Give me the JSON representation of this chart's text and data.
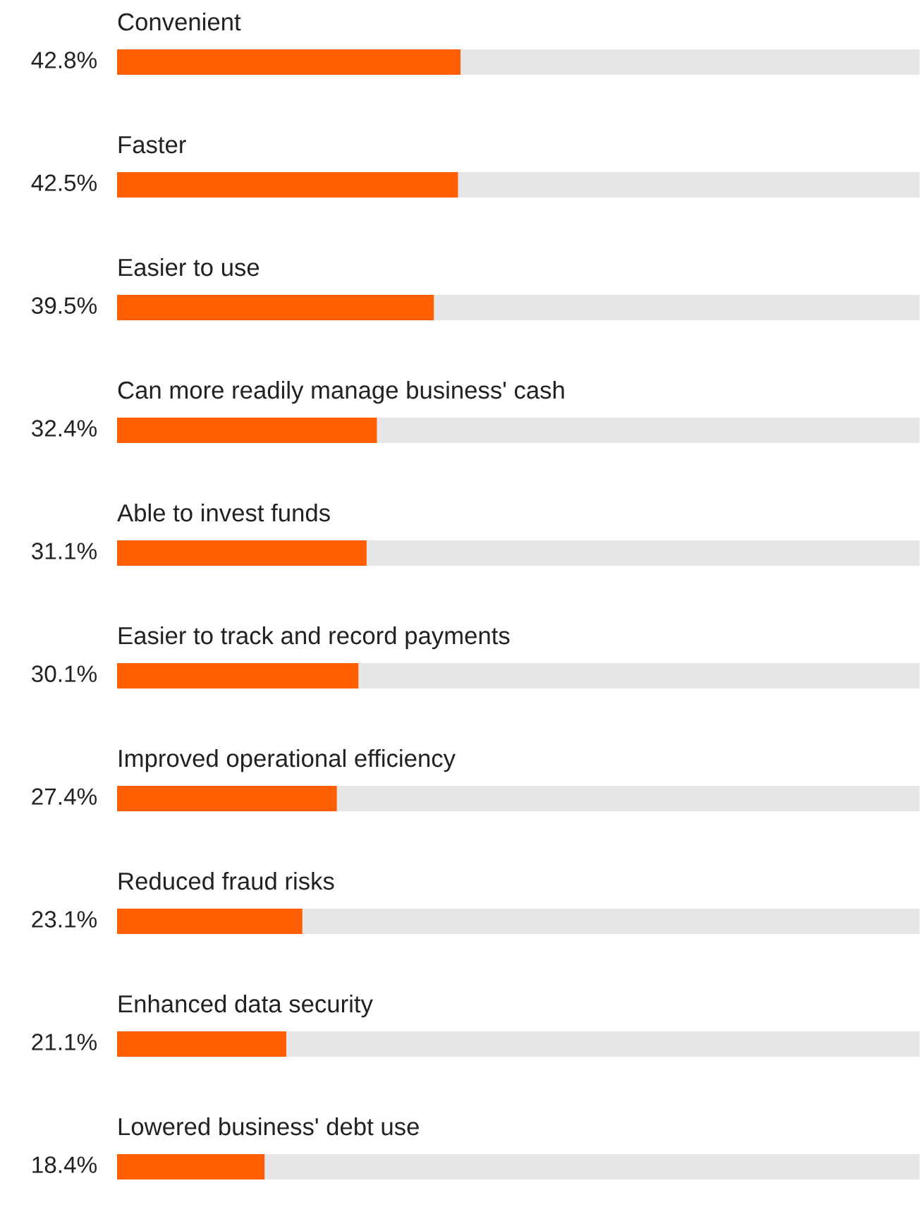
{
  "chart_data": {
    "type": "bar",
    "orientation": "horizontal",
    "categories": [
      "Convenient",
      "Faster",
      "Easier to use",
      "Can more readily manage business' cash",
      "Able to invest funds",
      "Easier to track and record payments",
      "Improved operational efficiency",
      "Reduced fraud risks",
      "Enhanced data security",
      "Lowered business' debt use"
    ],
    "stacked": true,
    "series": [
      {
        "color": "#ff5f00",
        "values": [
          42.8,
          42.5,
          39.5,
          32.4,
          31.1,
          30.1,
          27.4,
          23.1,
          21.1,
          18.4
        ],
        "value_labels": [
          "42.8%",
          "42.5%",
          "39.5%",
          "32.4%",
          "31.1%",
          "30.1%",
          "27.4%",
          "23.1%",
          "21.1%",
          "18.4%"
        ]
      },
      {
        "color": "#e6e6e8",
        "values": [
          57.2,
          57.5,
          60.5,
          67.6,
          68.9,
          69.9,
          72.6,
          76.9,
          78.9,
          81.6
        ]
      }
    ],
    "xlim": [
      0,
      100
    ]
  }
}
